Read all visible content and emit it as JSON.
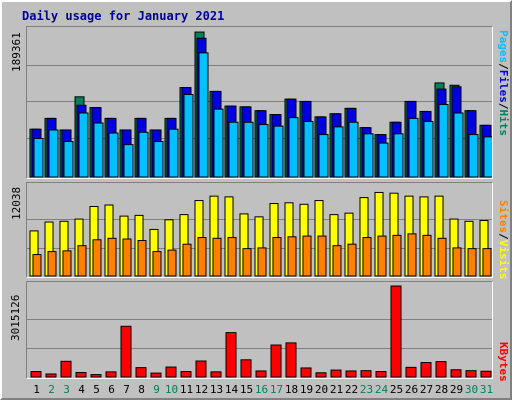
{
  "window": {
    "title": "Daily usage for January 2021"
  },
  "colors": {
    "hits": "#00805c",
    "files": "#0000e0",
    "pages": "#00c0ff",
    "visits": "#ffff00",
    "sites": "#ff8000",
    "kbytes": "#ff0000",
    "weekday_label": "#000000",
    "weekend_label": "#00805c",
    "title": "#0000a0"
  },
  "chart_data": [
    {
      "type": "bar",
      "title": "Daily usage for January 2021",
      "ymax_label": "189361",
      "ylim": [
        0,
        189361
      ],
      "legend": [
        "Pages",
        "Files",
        "Hits"
      ],
      "legend_position": "right",
      "categories": [
        "1",
        "2",
        "3",
        "4",
        "5",
        "6",
        "7",
        "8",
        "9",
        "10",
        "11",
        "12",
        "13",
        "14",
        "15",
        "16",
        "17",
        "18",
        "19",
        "20",
        "21",
        "22",
        "23",
        "24",
        "25",
        "26",
        "27",
        "28",
        "29",
        "30",
        "31"
      ],
      "series": [
        {
          "name": "Hits",
          "values": [
            62000,
            76000,
            61000,
            104000,
            90000,
            76000,
            61000,
            76000,
            61000,
            76000,
            116000,
            188000,
            111000,
            92000,
            91000,
            86000,
            81000,
            101000,
            98000,
            78000,
            82000,
            89000,
            64000,
            55000,
            71000,
            98000,
            85000,
            122000,
            119000,
            86000,
            67000
          ]
        },
        {
          "name": "Files",
          "values": [
            62000,
            76000,
            61000,
            93000,
            90000,
            76000,
            61000,
            76000,
            61000,
            76000,
            116000,
            180000,
            111000,
            92000,
            91000,
            86000,
            81000,
            101000,
            98000,
            78000,
            82000,
            89000,
            64000,
            55000,
            71000,
            98000,
            85000,
            114000,
            117000,
            86000,
            67000
          ]
        },
        {
          "name": "Pages",
          "values": [
            50000,
            61000,
            46000,
            83000,
            70000,
            57000,
            42000,
            58000,
            46000,
            62000,
            107000,
            161000,
            88000,
            71000,
            71000,
            68000,
            66000,
            77000,
            72000,
            55000,
            65000,
            71000,
            56000,
            44000,
            56000,
            76000,
            72000,
            94000,
            83000,
            55000,
            52000
          ]
        }
      ]
    },
    {
      "type": "bar",
      "ymax_label": "12038",
      "ylim": [
        0,
        12038
      ],
      "legend": [
        "Sites",
        "Visits"
      ],
      "legend_position": "right",
      "categories": [
        "1",
        "2",
        "3",
        "4",
        "5",
        "6",
        "7",
        "8",
        "9",
        "10",
        "11",
        "12",
        "13",
        "14",
        "15",
        "16",
        "17",
        "18",
        "19",
        "20",
        "21",
        "22",
        "23",
        "24",
        "25",
        "26",
        "27",
        "28",
        "29",
        "30",
        "31"
      ],
      "series": [
        {
          "name": "Visits",
          "values": [
            6100,
            7300,
            7400,
            7700,
            9400,
            9600,
            8100,
            8200,
            6300,
            7600,
            8300,
            10200,
            10800,
            10700,
            8400,
            8000,
            9800,
            9900,
            9700,
            10200,
            8300,
            8500,
            10600,
            11300,
            11200,
            10800,
            10700,
            10800,
            7700,
            7400,
            7500
          ]
        },
        {
          "name": "Sites",
          "values": [
            2900,
            3300,
            3400,
            4100,
            4900,
            5100,
            5000,
            4800,
            3300,
            3500,
            4300,
            5200,
            5100,
            5200,
            3700,
            3800,
            5200,
            5300,
            5400,
            5400,
            4100,
            4300,
            5200,
            5400,
            5500,
            5700,
            5500,
            5100,
            3800,
            3700,
            3700
          ]
        }
      ]
    },
    {
      "type": "bar",
      "ymax_label": "3015126",
      "ylim": [
        0,
        3015126
      ],
      "legend": [
        "KBytes"
      ],
      "legend_position": "right",
      "categories": [
        "1",
        "2",
        "3",
        "4",
        "5",
        "6",
        "7",
        "8",
        "9",
        "10",
        "11",
        "12",
        "13",
        "14",
        "15",
        "16",
        "17",
        "18",
        "19",
        "20",
        "21",
        "22",
        "23",
        "24",
        "25",
        "26",
        "27",
        "28",
        "29",
        "30",
        "31"
      ],
      "series": [
        {
          "name": "KBytes",
          "values": [
            180000,
            100000,
            520000,
            150000,
            80000,
            170000,
            1680000,
            310000,
            130000,
            330000,
            180000,
            530000,
            170000,
            1470000,
            570000,
            200000,
            1060000,
            1130000,
            300000,
            140000,
            230000,
            200000,
            210000,
            180000,
            3015126,
            320000,
            480000,
            510000,
            240000,
            210000,
            190000
          ]
        }
      ]
    }
  ]
}
